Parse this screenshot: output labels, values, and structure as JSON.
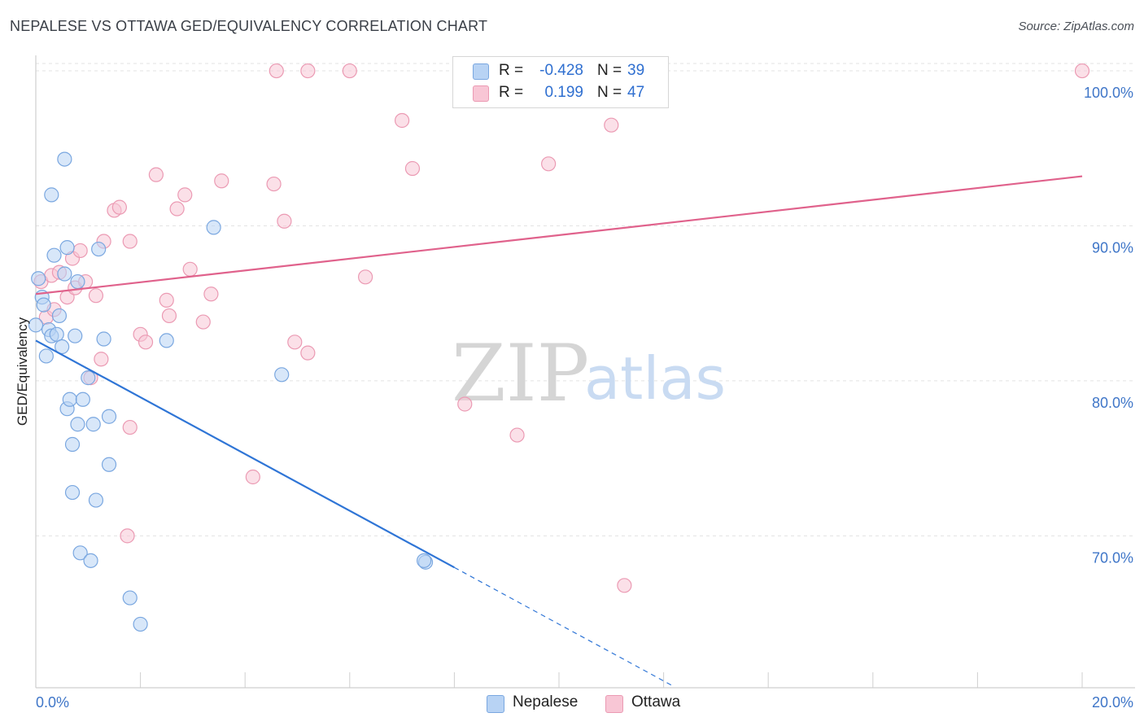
{
  "title": "NEPALESE VS OTTAWA GED/EQUIVALENCY CORRELATION CHART",
  "source": "Source: ZipAtlas.com",
  "watermark": {
    "part1": "ZIP",
    "part2": "atlas"
  },
  "legend": {
    "rows": [
      {
        "r_label": "R =",
        "r_value": "-0.428",
        "n_label": "N =",
        "n_value": "39"
      },
      {
        "r_label": "R =",
        "r_value": "0.199",
        "n_label": "N =",
        "n_value": "47"
      }
    ]
  },
  "bottom_legend": {
    "nepalese": "Nepalese",
    "ottawa": "Ottawa"
  },
  "colors": {
    "blue_fill": "#b8d3f4",
    "blue_stroke": "#7aa7e0",
    "blue_line": "#2f75d6",
    "pink_fill": "#f8c6d5",
    "pink_stroke": "#eb9ab3",
    "pink_line": "#e0628c",
    "axis_label": "#3f76c8",
    "grid": "#e3e3e3"
  },
  "chart_data": {
    "type": "scatter",
    "title": "NEPALESE VS OTTAWA GED/EQUIVALENCY CORRELATION CHART",
    "xlabel": "",
    "ylabel": "GED/Equivalency",
    "xlim": [
      0,
      20
    ],
    "ylim": [
      60.2,
      101.0
    ],
    "x_tick_labels": [
      {
        "value": 0,
        "label": "0.0%"
      },
      {
        "value": 20,
        "label": "20.0%"
      }
    ],
    "x_minor_ticks": [
      0,
      2,
      4,
      6,
      8,
      10,
      12,
      14,
      16,
      18,
      20
    ],
    "y_tick_labels": [
      {
        "value": 100,
        "label": "100.0%"
      },
      {
        "value": 90,
        "label": "90.0%"
      },
      {
        "value": 80,
        "label": "80.0%"
      },
      {
        "value": 70,
        "label": "70.0%"
      }
    ],
    "series": [
      {
        "name": "Nepalese",
        "r": -0.428,
        "n": 39,
        "trend": {
          "x0": 0,
          "y0": 82.6,
          "x_solid_end": 8.0,
          "x_dash_end": 12.2,
          "slope": -1.83
        },
        "points": [
          [
            0.05,
            86.6
          ],
          [
            0.12,
            85.4
          ],
          [
            0.15,
            84.9
          ],
          [
            0.0,
            83.6
          ],
          [
            0.25,
            83.3
          ],
          [
            0.3,
            82.9
          ],
          [
            0.4,
            83.0
          ],
          [
            0.5,
            82.2
          ],
          [
            0.2,
            81.6
          ],
          [
            0.45,
            84.2
          ],
          [
            0.55,
            86.9
          ],
          [
            0.6,
            88.6
          ],
          [
            0.35,
            88.1
          ],
          [
            0.8,
            86.4
          ],
          [
            0.3,
            92.0
          ],
          [
            0.55,
            94.3
          ],
          [
            1.2,
            88.5
          ],
          [
            0.75,
            82.9
          ],
          [
            1.3,
            82.7
          ],
          [
            1.0,
            80.2
          ],
          [
            0.6,
            78.2
          ],
          [
            0.65,
            78.8
          ],
          [
            0.9,
            78.8
          ],
          [
            0.8,
            77.2
          ],
          [
            1.1,
            77.2
          ],
          [
            0.7,
            75.9
          ],
          [
            1.4,
            77.7
          ],
          [
            1.4,
            74.6
          ],
          [
            0.7,
            72.8
          ],
          [
            1.15,
            72.3
          ],
          [
            0.85,
            68.9
          ],
          [
            1.05,
            68.4
          ],
          [
            1.8,
            66.0
          ],
          [
            2.0,
            64.3
          ],
          [
            2.5,
            82.6
          ],
          [
            3.4,
            89.9
          ],
          [
            4.7,
            80.4
          ],
          [
            7.45,
            68.3
          ],
          [
            7.42,
            68.4
          ]
        ]
      },
      {
        "name": "Ottawa",
        "r": 0.199,
        "n": 47,
        "trend": {
          "x0": 0,
          "y0": 85.6,
          "x1": 20,
          "y1": 93.2
        },
        "points": [
          [
            0.1,
            86.4
          ],
          [
            0.2,
            84.1
          ],
          [
            0.3,
            86.8
          ],
          [
            0.45,
            87.0
          ],
          [
            0.35,
            84.6
          ],
          [
            0.6,
            85.4
          ],
          [
            0.7,
            87.9
          ],
          [
            0.75,
            86.0
          ],
          [
            0.85,
            88.4
          ],
          [
            0.95,
            86.4
          ],
          [
            1.15,
            85.5
          ],
          [
            1.3,
            89.0
          ],
          [
            1.5,
            91.0
          ],
          [
            1.6,
            91.2
          ],
          [
            1.25,
            81.4
          ],
          [
            1.05,
            80.2
          ],
          [
            1.8,
            89.0
          ],
          [
            2.0,
            83.0
          ],
          [
            2.1,
            82.5
          ],
          [
            2.3,
            93.3
          ],
          [
            2.5,
            85.2
          ],
          [
            2.55,
            84.2
          ],
          [
            2.7,
            91.1
          ],
          [
            2.85,
            92.0
          ],
          [
            2.95,
            87.2
          ],
          [
            3.2,
            83.8
          ],
          [
            3.35,
            85.6
          ],
          [
            3.55,
            92.9
          ],
          [
            4.15,
            73.8
          ],
          [
            4.55,
            92.7
          ],
          [
            4.75,
            90.3
          ],
          [
            4.95,
            82.5
          ],
          [
            5.2,
            81.8
          ],
          [
            4.6,
            100.0
          ],
          [
            5.2,
            100.0
          ],
          [
            6.0,
            100.0
          ],
          [
            6.3,
            86.7
          ],
          [
            7.0,
            96.8
          ],
          [
            7.2,
            93.7
          ],
          [
            8.2,
            78.5
          ],
          [
            9.2,
            76.5
          ],
          [
            9.8,
            94.0
          ],
          [
            11.0,
            96.5
          ],
          [
            11.25,
            66.8
          ],
          [
            20.0,
            100.0
          ],
          [
            1.75,
            70.0
          ],
          [
            1.8,
            77.0
          ]
        ]
      }
    ]
  }
}
